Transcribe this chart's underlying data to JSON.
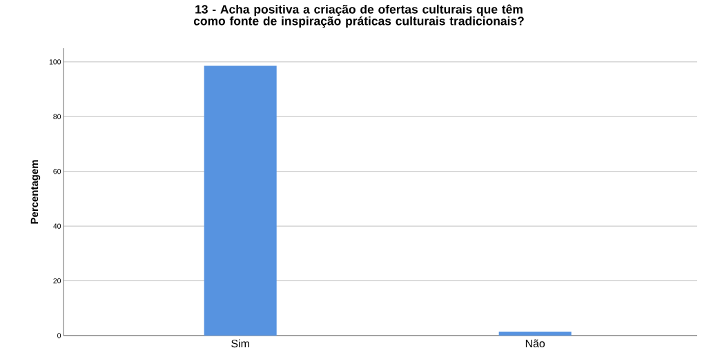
{
  "chart_data": {
    "type": "bar",
    "title": "13 - Acha positiva a criação de ofertas culturais que têm como fonte de inspiração práticas culturais tradicionais?",
    "ylabel": "Percentagem",
    "categories": [
      "Sim",
      "Não"
    ],
    "values": [
      98.6,
      1.4
    ],
    "color": "#5793e0",
    "ylim": [
      0,
      105
    ],
    "yticks": [
      0,
      20,
      40,
      60,
      80,
      100
    ],
    "grid": "y"
  }
}
